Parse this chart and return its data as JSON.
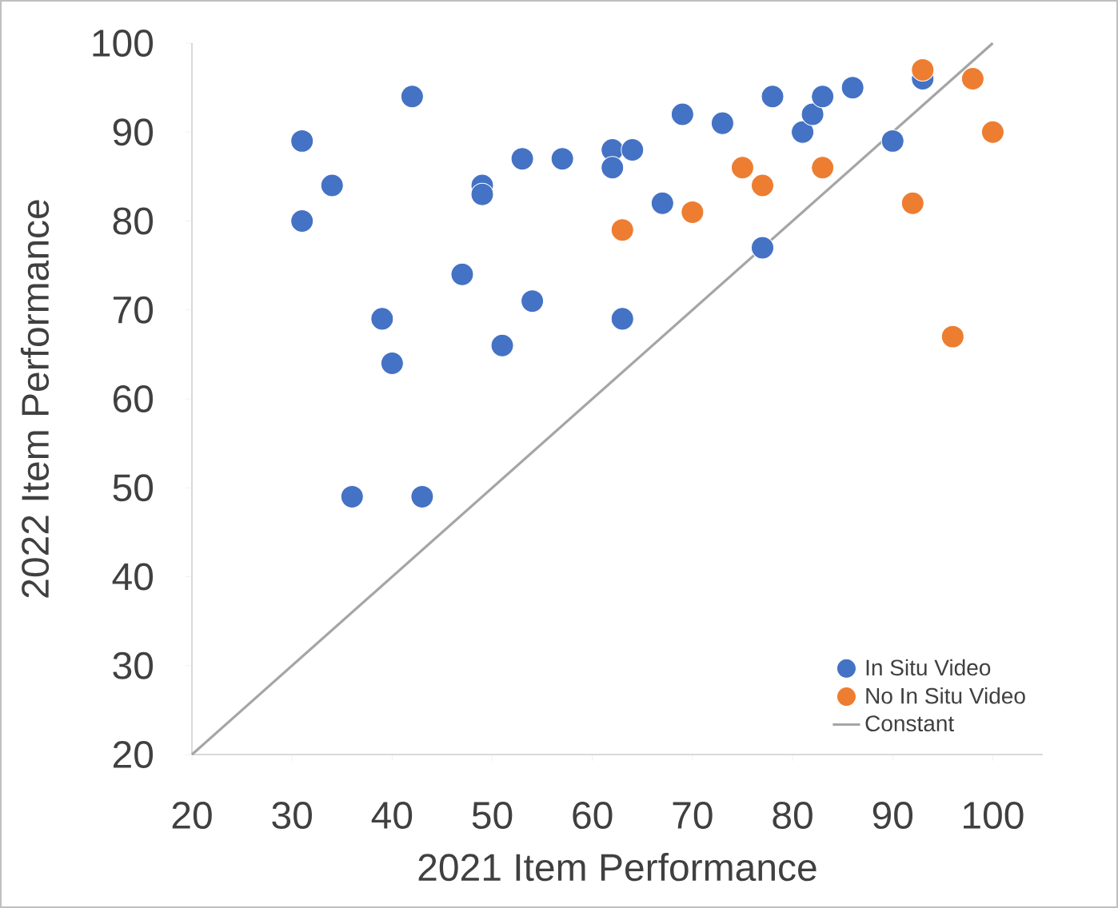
{
  "chart_data": {
    "type": "scatter",
    "xlabel": "2021 Item Performance",
    "ylabel": "2022 Item Performance",
    "xlim": [
      20,
      105
    ],
    "ylim": [
      20,
      100
    ],
    "xticks": [
      20,
      30,
      40,
      50,
      60,
      70,
      80,
      90,
      100
    ],
    "yticks": [
      20,
      30,
      40,
      50,
      60,
      70,
      80,
      90,
      100
    ],
    "grid": false,
    "legend": "bottom right",
    "marker": "circle",
    "series": [
      {
        "name": "In Situ Video",
        "color": "#4472c4",
        "x": [
          31,
          31,
          34,
          42,
          39,
          40,
          36,
          43,
          47,
          49,
          49,
          51,
          53,
          54,
          57,
          62,
          62,
          63,
          64,
          67,
          69,
          73,
          77,
          78,
          81,
          82,
          83,
          86,
          90,
          93
        ],
        "values": [
          89,
          80,
          84,
          94,
          69,
          64,
          49,
          49,
          74,
          84,
          83,
          66,
          87,
          71,
          87,
          88,
          86,
          69,
          88,
          82,
          92,
          91,
          77,
          94,
          90,
          92,
          94,
          95,
          89,
          96
        ]
      },
      {
        "name": "No In Situ Video",
        "color": "#ed7d31",
        "x": [
          63,
          70,
          75,
          77,
          83,
          92,
          93,
          96,
          98,
          100
        ],
        "values": [
          79,
          81,
          86,
          84,
          86,
          82,
          97,
          67,
          96,
          90
        ]
      },
      {
        "name": "Constant",
        "type": "line",
        "color": "#a5a5a5",
        "marker": "none",
        "line_style": "solid",
        "x": [
          20,
          100
        ],
        "values": [
          20,
          100
        ]
      }
    ]
  }
}
